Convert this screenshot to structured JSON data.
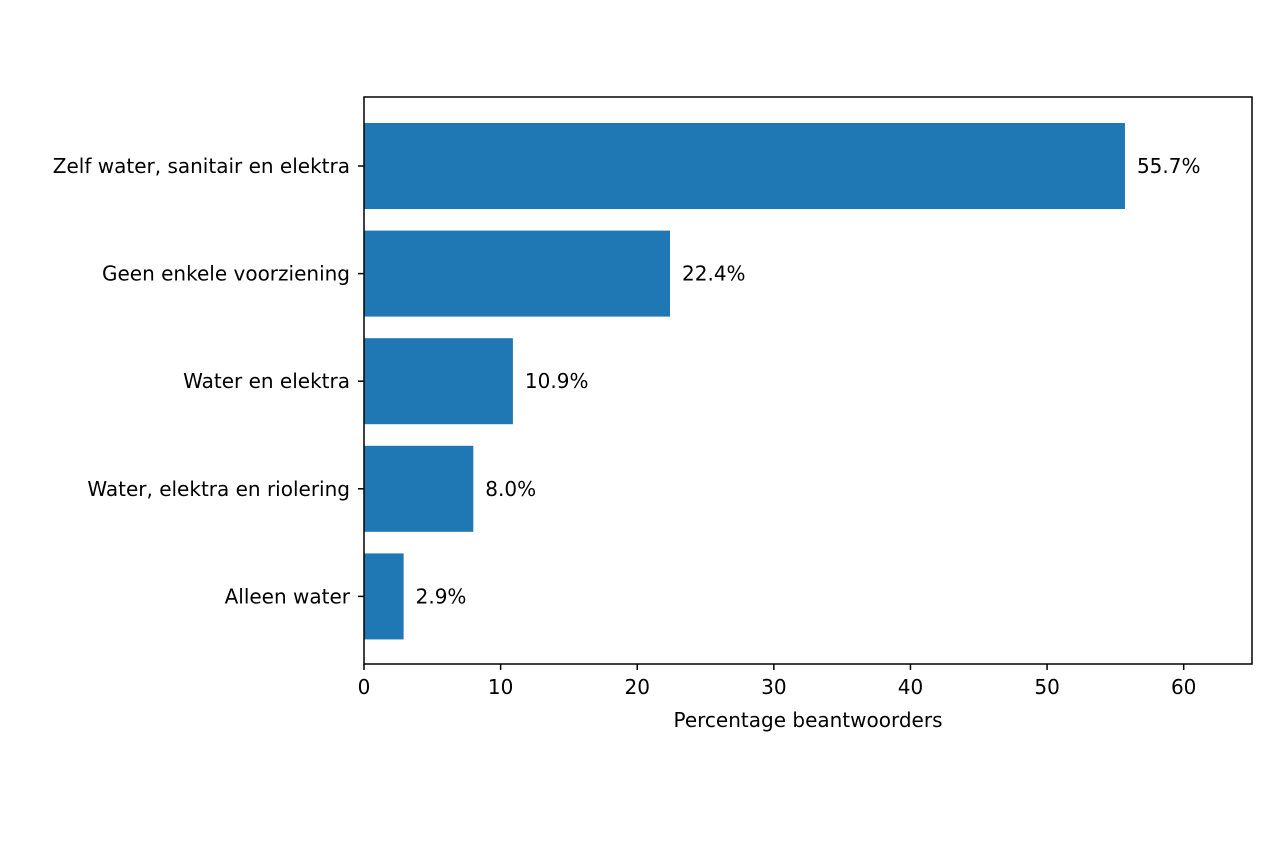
{
  "chart_data": {
    "type": "bar",
    "orientation": "horizontal",
    "categories": [
      "Zelf water, sanitair en elektra",
      "Geen enkele voorziening",
      "Water en elektra",
      "Water, elektra en riolering",
      "Alleen water"
    ],
    "values": [
      55.7,
      22.4,
      10.9,
      8.0,
      2.9
    ],
    "value_labels": [
      "55.7%",
      "22.4%",
      "10.9%",
      "8.0%",
      "2.9%"
    ],
    "xlabel": "Percentage beantwoorders",
    "ylabel": "",
    "xlim": [
      0,
      65
    ],
    "xticks": [
      0,
      10,
      20,
      30,
      40,
      50,
      60
    ],
    "xtick_labels": [
      "0",
      "10",
      "20",
      "30",
      "40",
      "50",
      "60"
    ],
    "grid": false,
    "bar_color": "#1f77b4"
  }
}
